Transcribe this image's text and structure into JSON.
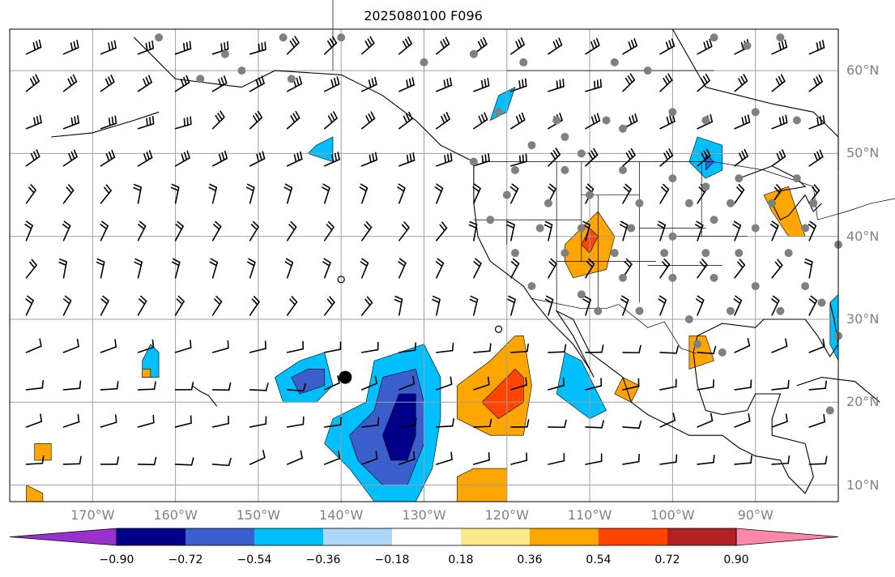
{
  "title": "2025080100 F096",
  "lat_labels": [
    "60°N",
    "50°N",
    "40°N",
    "30°N",
    "20°N",
    "10°N"
  ],
  "lon_labels": [
    "170°W",
    "160°W",
    "150°W",
    "140°W",
    "130°W",
    "120°W",
    "110°W",
    "100°W",
    "90°W"
  ],
  "colorbar": {
    "tick_labels": [
      "−0.90",
      "−0.72",
      "−0.54",
      "−0.36",
      "−0.18",
      "0.18",
      "0.36",
      "0.54",
      "0.72",
      "0.90"
    ],
    "colors": [
      "#9932cc",
      "#00008b",
      "#3a5fcd",
      "#00bfff",
      "#add8f5",
      "#ffffff",
      "#fde98a",
      "#ffa500",
      "#ff4500",
      "#b22222",
      "#ff88aa"
    ]
  },
  "palette": {
    "grid": "#a0a0a0",
    "coast": "#000000",
    "station": "#808080",
    "tick_text": "#808080"
  },
  "map": {
    "projection": "PlateCarree",
    "lon_range": [
      -180,
      -80
    ],
    "lat_range": [
      8,
      65
    ],
    "gridlines": true,
    "station_dots": true,
    "wind_barbs": true
  }
}
